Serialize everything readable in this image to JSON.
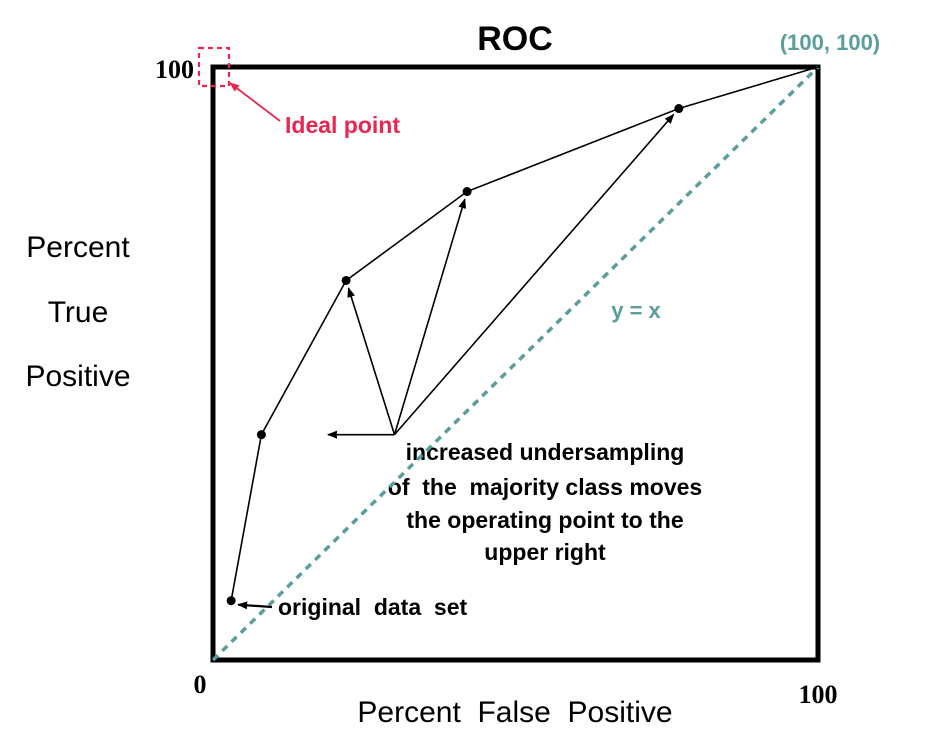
{
  "chart_data": {
    "type": "line",
    "title": "ROC",
    "xlabel": "Percent  False  Positive",
    "ylabel_lines": [
      "Percent",
      "True",
      "Positive"
    ],
    "x_ticks": [
      "0",
      "100"
    ],
    "y_ticks": [
      "100"
    ],
    "xlim": [
      0,
      100
    ],
    "ylim": [
      0,
      100
    ],
    "grid": false,
    "series": [
      {
        "x": [
          3,
          8,
          22,
          42,
          77,
          100
        ],
        "y": [
          10,
          38,
          64,
          79,
          93,
          100
        ]
      }
    ],
    "reference_line": {
      "label": "y = x",
      "x": [
        0,
        100
      ],
      "y": [
        0,
        100
      ],
      "color": "#5a9e9b",
      "style": "dashed"
    },
    "end_label": "(100, 100)",
    "ideal_point": {
      "label": "Ideal point",
      "x": 0,
      "y": 100,
      "color": "#e8264f"
    },
    "original_data_label": "original  data  set",
    "arrow_origin": {
      "x": 30,
      "y": 38
    },
    "arrow_targets": [
      {
        "x": 19,
        "y": 38
      },
      {
        "x": 22,
        "y": 64
      },
      {
        "x": 42,
        "y": 79
      },
      {
        "x": 77,
        "y": 93
      }
    ],
    "annotation_lines": [
      "increased undersampling",
      "of  the  majority class moves",
      "the operating point to the",
      "upper right"
    ]
  }
}
